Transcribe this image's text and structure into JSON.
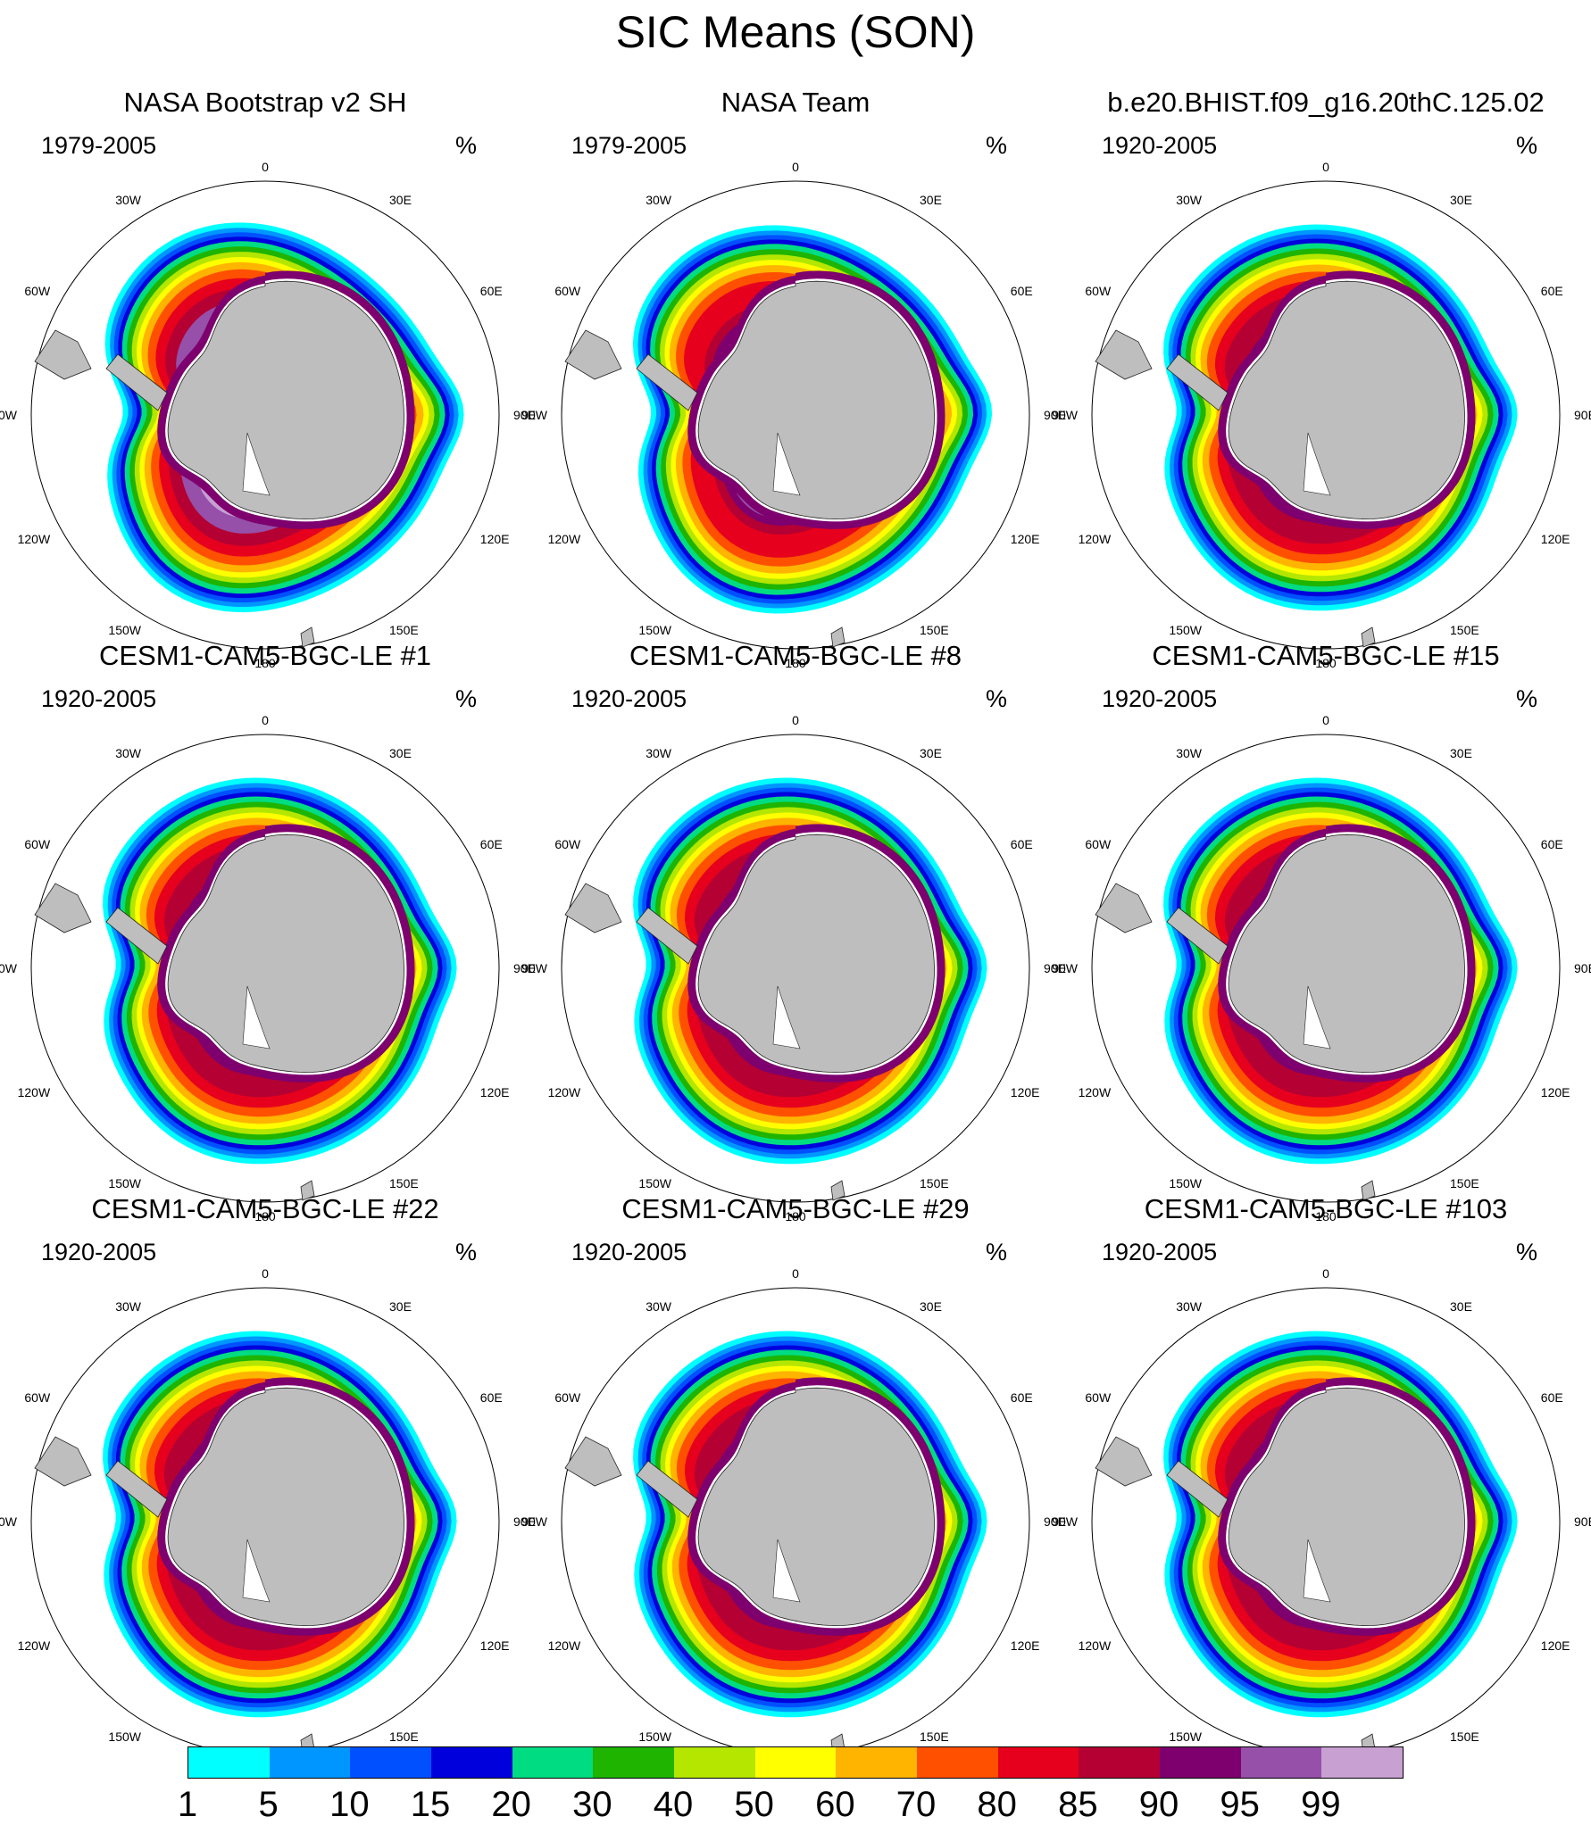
{
  "title": "SIC Means (SON)",
  "unit": "%",
  "lon_labels": [
    "0",
    "30E",
    "60E",
    "90E",
    "120E",
    "150E",
    "180",
    "150W",
    "120W",
    "90W",
    "60W",
    "30W"
  ],
  "panels": [
    {
      "title": "NASA Bootstrap v2 SH",
      "period": "1979-2005",
      "style": "bootstrap"
    },
    {
      "title": "NASA Team",
      "period": "1979-2005",
      "style": "team"
    },
    {
      "title": "b.e20.BHIST.f09_g16.20thC.125.02",
      "period": "1920-2005",
      "style": "model"
    },
    {
      "title": "CESM1-CAM5-BGC-LE #1",
      "period": "1920-2005",
      "style": "model"
    },
    {
      "title": "CESM1-CAM5-BGC-LE #8",
      "period": "1920-2005",
      "style": "model"
    },
    {
      "title": "CESM1-CAM5-BGC-LE #15",
      "period": "1920-2005",
      "style": "model"
    },
    {
      "title": "CESM1-CAM5-BGC-LE #22",
      "period": "1920-2005",
      "style": "model"
    },
    {
      "title": "CESM1-CAM5-BGC-LE #29",
      "period": "1920-2005",
      "style": "model"
    },
    {
      "title": "CESM1-CAM5-BGC-LE #103",
      "period": "1920-2005",
      "style": "model"
    }
  ],
  "colorbar": {
    "labels": [
      "1",
      "5",
      "10",
      "15",
      "20",
      "30",
      "40",
      "50",
      "60",
      "70",
      "80",
      "85",
      "90",
      "95",
      "99"
    ],
    "colors": [
      "#00ffff",
      "#0096ff",
      "#0050ff",
      "#0000dc",
      "#00dc82",
      "#1eb400",
      "#b4e600",
      "#ffff00",
      "#ffb400",
      "#ff5000",
      "#e6001e",
      "#b40032",
      "#7d006e",
      "#9650aa",
      "#c8a0d2"
    ]
  }
}
